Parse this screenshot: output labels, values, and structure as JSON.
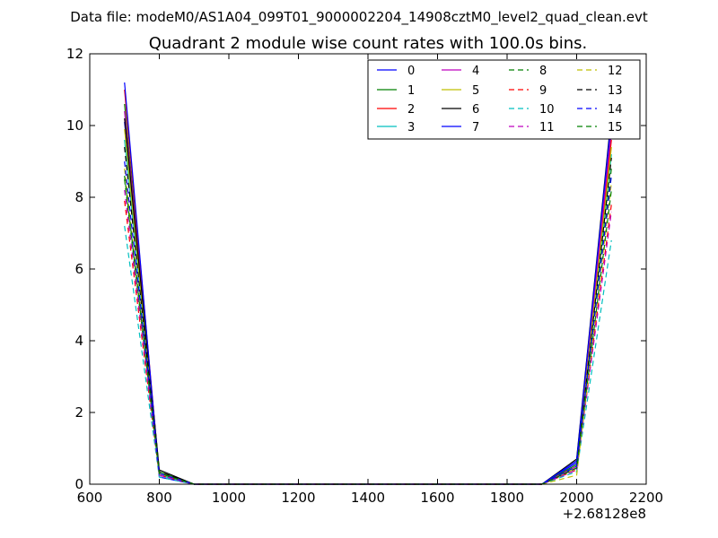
{
  "suptitle": "Data file: modeM0/AS1A04_099T01_9000002204_14908cztM0_level2_quad_clean.evt",
  "chart_data": {
    "type": "line",
    "title": "Quadrant 2 module wise count rates with 100.0s bins.",
    "xlabel": "",
    "ylabel": "",
    "x_offset_label": "+2.68128e8",
    "xlim": [
      600,
      2200
    ],
    "ylim": [
      0,
      12
    ],
    "xticks": [
      "600",
      "800",
      "1000",
      "1200",
      "1400",
      "1600",
      "1800",
      "2000",
      "2200"
    ],
    "yticks": [
      "0",
      "2",
      "4",
      "6",
      "8",
      "10",
      "12"
    ],
    "grid": false,
    "legend_position": "top-right",
    "x": [
      700,
      800,
      900,
      1000,
      1100,
      1200,
      1300,
      1400,
      1500,
      1600,
      1700,
      1800,
      1900,
      2000,
      2100
    ],
    "series": [
      {
        "name": "0",
        "color": "#0000ff",
        "dashed": false,
        "values": [
          10.1,
          0.3,
          0,
          0,
          0,
          0,
          0,
          0,
          0,
          0,
          0,
          0,
          0,
          0.6,
          9.8
        ]
      },
      {
        "name": "1",
        "color": "#008000",
        "dashed": false,
        "values": [
          10.6,
          0.35,
          0,
          0,
          0,
          0,
          0,
          0,
          0,
          0,
          0,
          0,
          0,
          0.55,
          10.1
        ]
      },
      {
        "name": "2",
        "color": "#ff0000",
        "dashed": false,
        "values": [
          11.0,
          0.3,
          0,
          0,
          0,
          0,
          0,
          0,
          0,
          0,
          0,
          0,
          0,
          0.5,
          9.6
        ]
      },
      {
        "name": "3",
        "color": "#00bfbf",
        "dashed": false,
        "values": [
          9.6,
          0.25,
          0,
          0,
          0,
          0,
          0,
          0,
          0,
          0,
          0,
          0,
          0,
          0.45,
          9.2
        ]
      },
      {
        "name": "4",
        "color": "#bf00bf",
        "dashed": false,
        "values": [
          10.4,
          0.3,
          0,
          0,
          0,
          0,
          0,
          0,
          0,
          0,
          0,
          0,
          0,
          0.5,
          9.9
        ]
      },
      {
        "name": "5",
        "color": "#bfbf00",
        "dashed": false,
        "values": [
          9.9,
          0.3,
          0,
          0,
          0,
          0,
          0,
          0,
          0,
          0,
          0,
          0,
          0,
          0.45,
          9.4
        ]
      },
      {
        "name": "6",
        "color": "#000000",
        "dashed": false,
        "values": [
          10.2,
          0.4,
          0,
          0,
          0,
          0,
          0,
          0,
          0,
          0,
          0,
          0,
          0,
          0.7,
          10.3
        ]
      },
      {
        "name": "7",
        "color": "#0000ff",
        "dashed": false,
        "values": [
          11.2,
          0.2,
          0,
          0,
          0,
          0,
          0,
          0,
          0,
          0,
          0,
          0,
          0,
          0.65,
          10.2
        ]
      },
      {
        "name": "8",
        "color": "#008000",
        "dashed": true,
        "values": [
          8.5,
          0.3,
          0,
          0,
          0,
          0,
          0,
          0,
          0,
          0,
          0,
          0,
          0,
          0.5,
          8.8
        ]
      },
      {
        "name": "9",
        "color": "#ff0000",
        "dashed": true,
        "values": [
          7.9,
          0.25,
          0,
          0,
          0,
          0,
          0,
          0,
          0,
          0,
          0,
          0,
          0,
          0.4,
          7.8
        ]
      },
      {
        "name": "10",
        "color": "#00bfbf",
        "dashed": true,
        "values": [
          7.2,
          0.2,
          0,
          0,
          0,
          0,
          0,
          0,
          0,
          0,
          0,
          0,
          0,
          0.35,
          6.8
        ]
      },
      {
        "name": "11",
        "color": "#bf00bf",
        "dashed": true,
        "values": [
          8.2,
          0.25,
          0,
          0,
          0,
          0,
          0,
          0,
          0,
          0,
          0,
          0,
          0,
          0.4,
          7.6
        ]
      },
      {
        "name": "12",
        "color": "#bfbf00",
        "dashed": true,
        "values": [
          8.8,
          0.3,
          0,
          0,
          0,
          0,
          0,
          0,
          0,
          0,
          0,
          0,
          0,
          0.25,
          8.4
        ]
      },
      {
        "name": "13",
        "color": "#000000",
        "dashed": true,
        "values": [
          9.4,
          0.35,
          0,
          0,
          0,
          0,
          0,
          0,
          0,
          0,
          0,
          0,
          0,
          0.45,
          9.1
        ]
      },
      {
        "name": "14",
        "color": "#0000ff",
        "dashed": true,
        "values": [
          9.0,
          0.3,
          0,
          0,
          0,
          0,
          0,
          0,
          0,
          0,
          0,
          0,
          0,
          0.5,
          8.6
        ]
      },
      {
        "name": "15",
        "color": "#008000",
        "dashed": true,
        "values": [
          8.6,
          0.3,
          0,
          0,
          0,
          0,
          0,
          0,
          0,
          0,
          0,
          0,
          0,
          0.45,
          8.2
        ]
      }
    ]
  }
}
